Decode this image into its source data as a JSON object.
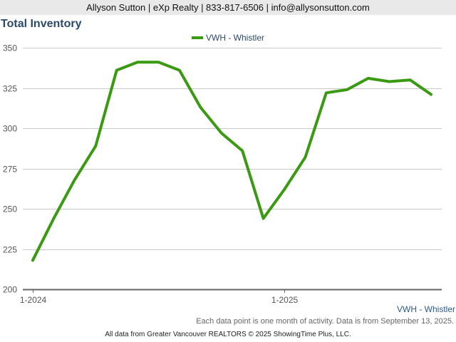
{
  "header": {
    "contact": "Allyson Sutton | eXp Realty | 833-817-6506 | info@allysonsutton.com"
  },
  "colors": {
    "series": "#3a9a12",
    "grid": "#c8c8c8",
    "axis": "#666666",
    "text": "#2b4a6b"
  },
  "chart_data": {
    "type": "line",
    "title": "Total Inventory",
    "xlabel": "",
    "ylabel": "",
    "ylim": [
      200,
      350
    ],
    "yticks": [
      200,
      225,
      250,
      275,
      300,
      325,
      350
    ],
    "grid": true,
    "legend_position": "top-center",
    "x": [
      "2024-01",
      "2024-02",
      "2024-03",
      "2024-04",
      "2024-05",
      "2024-06",
      "2024-07",
      "2024-08",
      "2024-09",
      "2024-10",
      "2024-11",
      "2024-12",
      "2025-01",
      "2025-02",
      "2025-03",
      "2025-04",
      "2025-05",
      "2025-06",
      "2025-07",
      "2025-08"
    ],
    "xtick_labels": [
      {
        "at": "2024-01",
        "label": "1-2024"
      },
      {
        "at": "2025-01",
        "label": "1-2025"
      }
    ],
    "series": [
      {
        "name": "VWH - Whistler",
        "values": [
          218,
          244,
          268,
          289,
          336,
          341,
          341,
          336,
          313,
          297,
          286,
          244,
          262,
          282,
          322,
          324,
          331,
          329,
          330,
          321
        ]
      }
    ]
  },
  "series_label": "VWH - Whistler",
  "note": "Each data point is one month of activity. Data is from September 13, 2025.",
  "footer": "All data from Greater Vancouver REALTORS © 2025 ShowingTime Plus, LLC."
}
